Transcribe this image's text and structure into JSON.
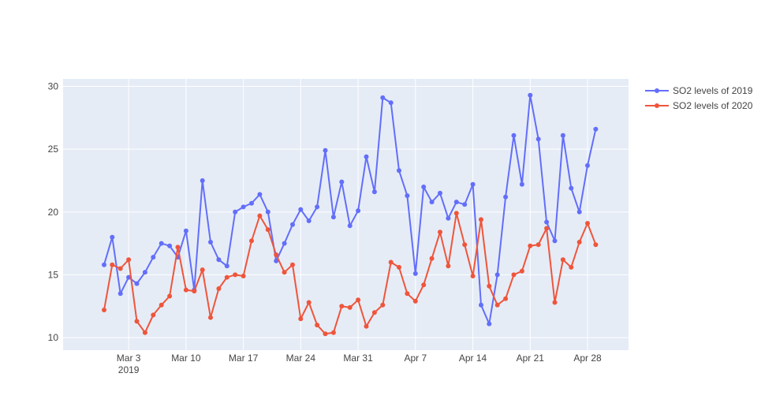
{
  "chart_data": {
    "type": "line",
    "title": "",
    "xlabel": "",
    "ylabel": "",
    "x_start": "2019-02-28",
    "x_step_days": 1,
    "xlim": [
      "2019-02-23",
      "2019-05-03"
    ],
    "ylim": [
      9.0,
      30.6
    ],
    "yticks": [
      10,
      15,
      20,
      25,
      30
    ],
    "xticks": [
      {
        "date": "2019-03-03",
        "label": "Mar 3",
        "sublabel": "2019"
      },
      {
        "date": "2019-03-10",
        "label": "Mar 10",
        "sublabel": ""
      },
      {
        "date": "2019-03-17",
        "label": "Mar 17",
        "sublabel": ""
      },
      {
        "date": "2019-03-24",
        "label": "Mar 24",
        "sublabel": ""
      },
      {
        "date": "2019-03-31",
        "label": "Mar 31",
        "sublabel": ""
      },
      {
        "date": "2019-04-07",
        "label": "Apr 7",
        "sublabel": ""
      },
      {
        "date": "2019-04-14",
        "label": "Apr 14",
        "sublabel": ""
      },
      {
        "date": "2019-04-21",
        "label": "Apr 21",
        "sublabel": ""
      },
      {
        "date": "2019-04-28",
        "label": "Apr 28",
        "sublabel": ""
      }
    ],
    "grid": true,
    "legend_position": "top-right",
    "series": [
      {
        "name": "SO2 levels of 2019",
        "color": "#636efa",
        "values": [
          15.8,
          18.0,
          13.5,
          14.8,
          14.3,
          15.2,
          16.4,
          17.5,
          17.3,
          16.4,
          18.5,
          13.8,
          22.5,
          17.6,
          16.2,
          15.7,
          20.0,
          20.4,
          20.7,
          21.4,
          20.0,
          16.1,
          17.5,
          19.0,
          20.2,
          19.3,
          20.4,
          24.9,
          19.6,
          22.4,
          18.9,
          20.1,
          24.4,
          21.6,
          29.1,
          28.7,
          23.3,
          21.3,
          15.1,
          22.0,
          20.8,
          21.5,
          19.5,
          20.8,
          20.6,
          22.2,
          12.6,
          11.1,
          15.0,
          21.2,
          26.1,
          22.2,
          29.3,
          25.8,
          19.2,
          17.7,
          26.1,
          21.9,
          20.0,
          23.7,
          26.6
        ]
      },
      {
        "name": "SO2 levels of 2020",
        "color": "#ef553b",
        "values": [
          12.2,
          15.8,
          15.5,
          16.2,
          11.3,
          10.4,
          11.8,
          12.6,
          13.3,
          17.2,
          13.8,
          13.7,
          15.4,
          11.6,
          13.9,
          14.8,
          15.0,
          14.9,
          17.7,
          19.7,
          18.6,
          16.6,
          15.2,
          15.8,
          11.5,
          12.8,
          11.0,
          10.3,
          10.4,
          12.5,
          12.4,
          13.0,
          10.9,
          12.0,
          12.6,
          16.0,
          15.6,
          13.5,
          12.9,
          14.2,
          16.3,
          18.4,
          15.7,
          19.9,
          17.4,
          14.9,
          19.4,
          14.1,
          12.6,
          13.1,
          15.0,
          15.3,
          17.3,
          17.4,
          18.7,
          12.8,
          16.2,
          15.6,
          17.6,
          19.1,
          17.4
        ]
      }
    ]
  }
}
